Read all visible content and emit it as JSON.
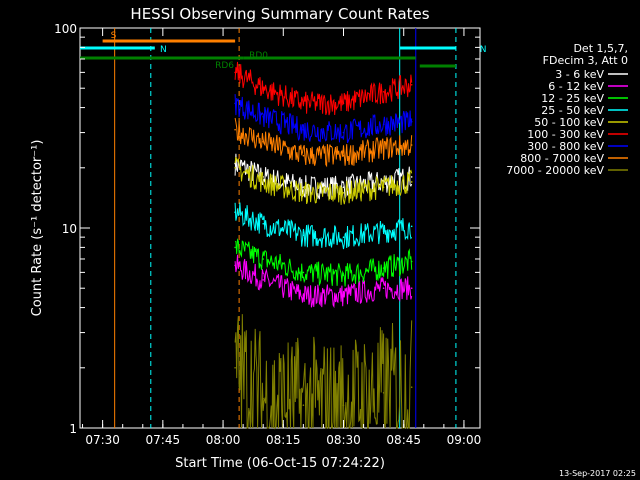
{
  "chart_data": {
    "type": "line",
    "title": "HESSI Observing Summary Count Rates",
    "ylabel": "Count Rate (s⁻¹ detector⁻¹)",
    "xlabel": "Start Time (06-Oct-15 07:24:22)",
    "y_scale": "log",
    "ylim": [
      1,
      100
    ],
    "xlim": [
      "07:24:22",
      "09:04:00"
    ],
    "x_ticks": [
      "07:30",
      "07:45",
      "08:00",
      "08:15",
      "08:30",
      "08:45",
      "09:00"
    ],
    "y_ticks": [
      "1",
      "10",
      "100"
    ],
    "legend_header": [
      "Det 1,5,7,",
      "FDecim 3, Att 0"
    ],
    "legend_position": "right",
    "data_window": {
      "start": "08:03",
      "end": "08:47"
    },
    "series": [
      {
        "name": "3 - 6 keV",
        "color": "#ffffff",
        "x": [
          "08:03",
          "08:10",
          "08:20",
          "08:30",
          "08:40",
          "08:47"
        ],
        "y": [
          21,
          18,
          16,
          16,
          17,
          18
        ]
      },
      {
        "name": "6 - 12 keV",
        "color": "#ff00ff",
        "x": [
          "08:03",
          "08:10",
          "08:20",
          "08:30",
          "08:40",
          "08:47"
        ],
        "y": [
          6.5,
          5.5,
          4.6,
          4.6,
          5.0,
          5.0
        ]
      },
      {
        "name": "12 - 25 keV",
        "color": "#00ff00",
        "x": [
          "08:03",
          "08:10",
          "08:20",
          "08:30",
          "08:40",
          "08:47"
        ],
        "y": [
          8.0,
          7.0,
          6.0,
          5.8,
          6.3,
          6.8
        ]
      },
      {
        "name": "25 - 50 keV",
        "color": "#00ffff",
        "x": [
          "08:03",
          "08:10",
          "08:20",
          "08:30",
          "08:40",
          "08:47"
        ],
        "y": [
          12,
          10.5,
          9.2,
          9.0,
          9.6,
          10.2
        ]
      },
      {
        "name": "50 - 100 keV",
        "color": "#cccc00",
        "x": [
          "08:03",
          "08:10",
          "08:20",
          "08:30",
          "08:40",
          "08:47"
        ],
        "y": [
          20,
          17,
          15,
          15,
          16,
          17
        ]
      },
      {
        "name": "100 - 300 keV",
        "color": "#ff0000",
        "x": [
          "08:03",
          "08:10",
          "08:20",
          "08:30",
          "08:40",
          "08:47"
        ],
        "y": [
          60,
          50,
          42,
          42,
          48,
          52
        ]
      },
      {
        "name": "300 - 800 keV",
        "color": "#0000ff",
        "x": [
          "08:03",
          "08:10",
          "08:20",
          "08:30",
          "08:40",
          "08:47"
        ],
        "y": [
          42,
          36,
          31,
          30,
          33,
          34
        ]
      },
      {
        "name": "800 - 7000 keV",
        "color": "#ff8000",
        "x": [
          "08:03",
          "08:10",
          "08:20",
          "08:30",
          "08:40",
          "08:47"
        ],
        "y": [
          31,
          27,
          23,
          23,
          25,
          26
        ]
      },
      {
        "name": "7000 - 20000 keV",
        "color": "#808000",
        "x": [
          "08:03",
          "08:10",
          "08:20",
          "08:30",
          "08:40",
          "08:47"
        ],
        "y": [
          2.0,
          1.4,
          1.3,
          1.3,
          1.5,
          1.6
        ]
      }
    ],
    "flag_bars": [
      {
        "label": "S",
        "color": "#ff8000",
        "x": [
          "07:30",
          "08:03"
        ]
      },
      {
        "label": "N",
        "color": "#00ffff",
        "x": [
          "07:24:22",
          "07:43"
        ]
      },
      {
        "label": "N",
        "color": "#00ffff",
        "x": [
          "08:44",
          "08:58"
        ]
      },
      {
        "label": "RD6",
        "color": "#008000",
        "x": [
          "07:24:22",
          "08:05"
        ]
      },
      {
        "label": "RD0",
        "color": "#008000",
        "x": [
          "08:05",
          "08:48"
        ]
      },
      {
        "label": "",
        "color": "#008000",
        "x": [
          "08:49",
          "08:58"
        ]
      }
    ],
    "vertical_markers": [
      {
        "time": "07:33",
        "color": "#ff8000",
        "style": "solid"
      },
      {
        "time": "07:42",
        "color": "#00ffff",
        "style": "dashed"
      },
      {
        "time": "08:04",
        "color": "#ff8000",
        "style": "dashed"
      },
      {
        "time": "08:44",
        "color": "#00ffff",
        "style": "solid"
      },
      {
        "time": "08:48",
        "color": "#0000ff",
        "style": "solid"
      },
      {
        "time": "08:58",
        "color": "#00ffff",
        "style": "dashed"
      }
    ]
  },
  "footer": {
    "timestamp": "13-Sep-2017 02:25"
  }
}
